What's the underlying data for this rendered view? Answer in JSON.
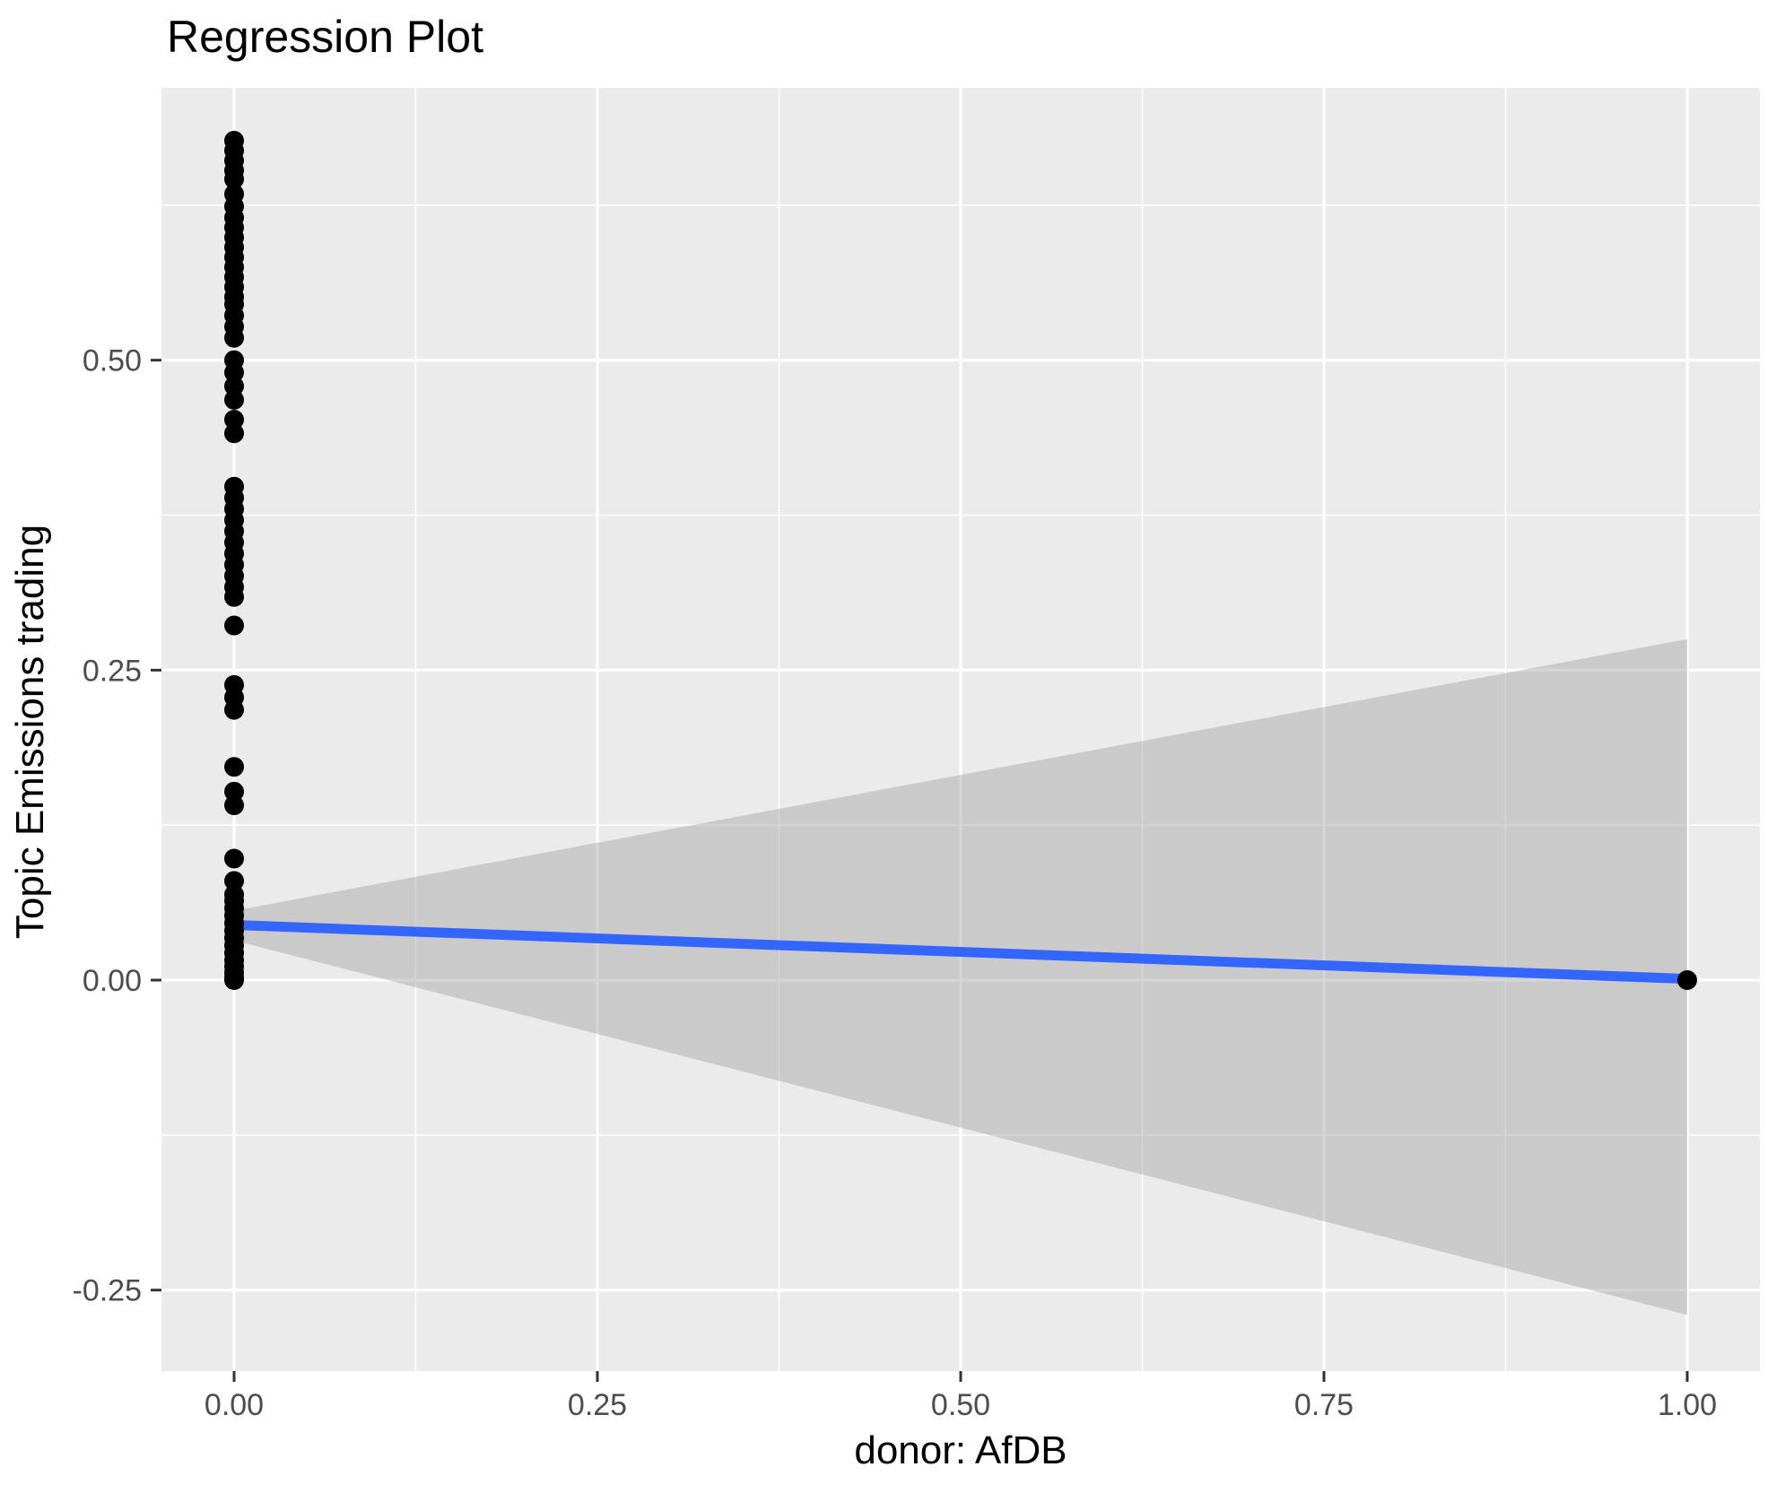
{
  "chart_data": {
    "type": "scatter",
    "title": "Regression Plot",
    "xlabel": "donor: AfDB",
    "ylabel": "Topic Emissions trading",
    "xlim": [
      -0.05,
      1.05
    ],
    "ylim": [
      -0.3153,
      0.7196
    ],
    "grid": true,
    "legend": "none",
    "x_ticks": {
      "values": [
        0,
        0.25,
        0.5,
        0.75,
        1.0
      ],
      "labels": [
        "0.00",
        "0.25",
        "0.50",
        "0.75",
        "1.00"
      ]
    },
    "y_ticks": {
      "values": [
        -0.25,
        0,
        0.25,
        0.5
      ],
      "labels": [
        "-0.25",
        "0.00",
        "0.25",
        "0.50"
      ]
    },
    "x_minor": [
      0.125,
      0.375,
      0.625,
      0.875
    ],
    "y_minor": [
      -0.125,
      0.125,
      0.375,
      0.625
    ],
    "series": [
      {
        "name": "observations",
        "points": [
          [
            0,
            0.677
          ],
          [
            0,
            0.669
          ],
          [
            0,
            0.661
          ],
          [
            0,
            0.653
          ],
          [
            0,
            0.646
          ],
          [
            0,
            0.634
          ],
          [
            0,
            0.624
          ],
          [
            0,
            0.615
          ],
          [
            0,
            0.607
          ],
          [
            0,
            0.599
          ],
          [
            0,
            0.591
          ],
          [
            0,
            0.583
          ],
          [
            0,
            0.575
          ],
          [
            0,
            0.567
          ],
          [
            0,
            0.559
          ],
          [
            0,
            0.551
          ],
          [
            0,
            0.545
          ],
          [
            0,
            0.536
          ],
          [
            0,
            0.527
          ],
          [
            0,
            0.518
          ],
          [
            0,
            0.5
          ],
          [
            0,
            0.49
          ],
          [
            0,
            0.479
          ],
          [
            0,
            0.468
          ],
          [
            0,
            0.452
          ],
          [
            0,
            0.441
          ],
          [
            0,
            0.398
          ],
          [
            0,
            0.389
          ],
          [
            0,
            0.38
          ],
          [
            0,
            0.371
          ],
          [
            0,
            0.362
          ],
          [
            0,
            0.353
          ],
          [
            0,
            0.344
          ],
          [
            0,
            0.335
          ],
          [
            0,
            0.326
          ],
          [
            0,
            0.317
          ],
          [
            0,
            0.309
          ],
          [
            0,
            0.286
          ],
          [
            0,
            0.238
          ],
          [
            0,
            0.228
          ],
          [
            0,
            0.218
          ],
          [
            0,
            0.172
          ],
          [
            0,
            0.152
          ],
          [
            0,
            0.141
          ],
          [
            0,
            0.098
          ],
          [
            0,
            0.08
          ],
          [
            0,
            0.069
          ],
          [
            0,
            0.064
          ],
          [
            0,
            0.058
          ],
          [
            0,
            0.052
          ],
          [
            0,
            0.046
          ],
          [
            0,
            0.04
          ],
          [
            0,
            0.034
          ],
          [
            0,
            0.028
          ],
          [
            0,
            0.022
          ],
          [
            0,
            0.016
          ],
          [
            0,
            0.011
          ],
          [
            0,
            0.006
          ],
          [
            0,
            0.002
          ],
          [
            0,
            0.0
          ],
          [
            1,
            0.0
          ]
        ]
      }
    ],
    "regression_line": {
      "x": [
        0,
        1
      ],
      "y": [
        0.0445,
        0.001
      ]
    },
    "confidence_band": {
      "x": [
        0,
        1
      ],
      "upper": [
        0.056,
        0.275
      ],
      "lower": [
        0.032,
        -0.27
      ]
    },
    "point_radius": 11,
    "colors": {
      "panel": "#EBEBEB",
      "grid": "#FFFFFF",
      "point": "#000000",
      "line": "#3366FF",
      "band": "#999999",
      "band_opacity": 0.4,
      "tick_label": "#4D4D4D",
      "tick_mark": "#333333",
      "text": "#000000"
    }
  }
}
